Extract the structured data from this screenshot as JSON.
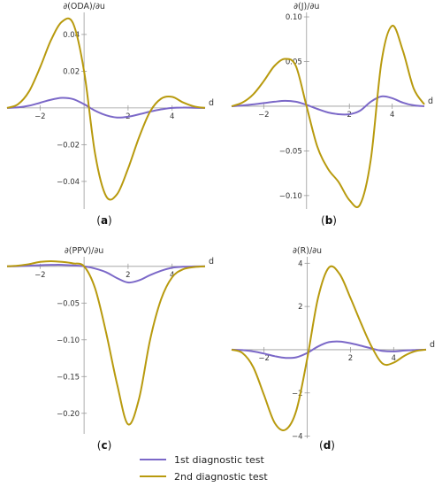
{
  "colors": {
    "first": "#7b68c8",
    "second": "#b89a0e",
    "axis": "#999999"
  },
  "legend": [
    {
      "key": "first",
      "label": "1st diagnostic test"
    },
    {
      "key": "second",
      "label": "2nd diagnostic test"
    }
  ],
  "chart_data": [
    {
      "type": "line",
      "panel_label": "(a)",
      "panel_letter": "a",
      "ylabel": "∂(ODA)/∂u",
      "xlabel": "d",
      "xlim": [
        -3.5,
        5.5
      ],
      "ylim": [
        -0.055,
        0.052
      ],
      "xticks": [
        -2,
        2,
        4
      ],
      "xtick_labels": [
        "−2",
        "2",
        "4"
      ],
      "yticks": [
        0.04,
        0.02,
        -0.02,
        -0.04
      ],
      "ytick_labels": [
        "0.04",
        "0.02",
        "−0.02",
        "−0.04"
      ],
      "series": [
        {
          "name": "1st diagnostic test",
          "key": "first",
          "x": [
            -3.5,
            -3.0,
            -2.5,
            -2.0,
            -1.5,
            -1.0,
            -0.5,
            0.0,
            0.5,
            1.0,
            1.5,
            2.0,
            2.5,
            3.0,
            3.5,
            4.0,
            4.5,
            5.0,
            5.5
          ],
          "y": [
            0.0,
            0.0003,
            0.0012,
            0.0028,
            0.0045,
            0.0055,
            0.0048,
            0.002,
            -0.0015,
            -0.004,
            -0.0052,
            -0.0048,
            -0.0035,
            -0.002,
            -0.0008,
            0.0,
            0.0002,
            0.0001,
            0.0
          ]
        },
        {
          "name": "2nd diagnostic test",
          "key": "second",
          "x": [
            -3.5,
            -3.0,
            -2.5,
            -2.0,
            -1.5,
            -1.0,
            -0.5,
            0.0,
            0.5,
            1.0,
            1.5,
            2.0,
            2.5,
            3.0,
            3.5,
            4.0,
            4.5,
            5.0,
            5.5
          ],
          "y": [
            0.0,
            0.002,
            0.009,
            0.022,
            0.037,
            0.047,
            0.046,
            0.02,
            -0.025,
            -0.048,
            -0.047,
            -0.033,
            -0.016,
            -0.002,
            0.005,
            0.006,
            0.003,
            0.0008,
            0.0
          ]
        }
      ]
    },
    {
      "type": "line",
      "panel_label": "(b)",
      "panel_letter": "b",
      "ylabel": "∂(J)/∂u",
      "xlabel": "d",
      "xlim": [
        -3.5,
        5.5
      ],
      "ylim": [
        -0.115,
        0.105
      ],
      "xticks": [
        -2,
        2,
        4
      ],
      "xtick_labels": [
        "−2",
        "2",
        "4"
      ],
      "yticks": [
        0.1,
        0.05,
        -0.05,
        -0.1
      ],
      "ytick_labels": [
        "0.10",
        "0.05",
        "−0.05",
        "−0.10"
      ],
      "series": [
        {
          "name": "1st diagnostic test",
          "key": "first",
          "x": [
            -3.5,
            -3.0,
            -2.5,
            -2.0,
            -1.5,
            -1.0,
            -0.5,
            0.0,
            0.5,
            1.0,
            1.5,
            2.0,
            2.5,
            3.0,
            3.5,
            4.0,
            4.5,
            5.0,
            5.5
          ],
          "y": [
            0.0,
            0.0008,
            0.002,
            0.0035,
            0.005,
            0.006,
            0.005,
            0.0015,
            -0.003,
            -0.007,
            -0.009,
            -0.009,
            -0.005,
            0.005,
            0.011,
            0.009,
            0.004,
            0.001,
            0.0
          ]
        },
        {
          "name": "2nd diagnostic test",
          "key": "second",
          "x": [
            -3.5,
            -3.0,
            -2.5,
            -2.0,
            -1.5,
            -1.0,
            -0.5,
            0.0,
            0.5,
            1.0,
            1.5,
            2.0,
            2.5,
            3.0,
            3.5,
            4.0,
            4.5,
            5.0,
            5.5
          ],
          "y": [
            0.0,
            0.004,
            0.013,
            0.028,
            0.045,
            0.053,
            0.045,
            0.0,
            -0.045,
            -0.07,
            -0.085,
            -0.105,
            -0.11,
            -0.06,
            0.05,
            0.09,
            0.062,
            0.02,
            0.002
          ]
        }
      ]
    },
    {
      "type": "line",
      "panel_label": "(c)",
      "panel_letter": "c",
      "ylabel": "∂(PPV)/∂u",
      "xlabel": "d",
      "xlim": [
        -3.5,
        5.5
      ],
      "ylim": [
        -0.228,
        0.013
      ],
      "xticks": [
        -2,
        2,
        4
      ],
      "xtick_labels": [
        "−2",
        "2",
        "4"
      ],
      "yticks": [
        -0.05,
        -0.1,
        -0.15,
        -0.2
      ],
      "ytick_labels": [
        "−0.05",
        "−0.10",
        "−0.15",
        "−0.20"
      ],
      "series": [
        {
          "name": "1st diagnostic test",
          "key": "first",
          "x": [
            -3.5,
            -3.0,
            -2.5,
            -2.0,
            -1.5,
            -1.0,
            -0.5,
            0.0,
            0.5,
            1.0,
            1.5,
            2.0,
            2.5,
            3.0,
            3.5,
            4.0,
            4.5,
            5.0,
            5.5
          ],
          "y": [
            0.0,
            0.0002,
            0.0008,
            0.0015,
            0.002,
            0.002,
            0.0012,
            0.0,
            -0.003,
            -0.008,
            -0.016,
            -0.022,
            -0.019,
            -0.012,
            -0.006,
            -0.002,
            -0.0006,
            -0.0001,
            0.0
          ]
        },
        {
          "name": "2nd diagnostic test",
          "key": "second",
          "x": [
            -3.5,
            -3.0,
            -2.5,
            -2.0,
            -1.5,
            -1.0,
            -0.5,
            0.0,
            0.5,
            1.0,
            1.5,
            2.0,
            2.5,
            3.0,
            3.5,
            4.0,
            4.5,
            5.0,
            5.5
          ],
          "y": [
            0.0,
            0.001,
            0.003,
            0.006,
            0.007,
            0.006,
            0.004,
            0.0,
            -0.03,
            -0.09,
            -0.16,
            -0.215,
            -0.18,
            -0.1,
            -0.045,
            -0.015,
            -0.004,
            -0.001,
            0.0
          ]
        }
      ]
    },
    {
      "type": "line",
      "panel_label": "(d)",
      "panel_letter": "d",
      "ylabel": "∂(R)/∂u",
      "xlabel": "d",
      "xlim": [
        -3.5,
        5.5
      ],
      "ylim": [
        -4.1,
        4.3
      ],
      "xticks": [
        -2,
        2,
        4
      ],
      "xtick_labels": [
        "−2",
        "2",
        "4"
      ],
      "yticks": [
        4,
        2,
        -2,
        -4
      ],
      "ytick_labels": [
        "4",
        "2",
        "−2",
        "−4"
      ],
      "series": [
        {
          "name": "1st diagnostic test",
          "key": "first",
          "x": [
            -3.5,
            -3.0,
            -2.5,
            -2.0,
            -1.5,
            -1.0,
            -0.5,
            0.0,
            0.5,
            1.0,
            1.5,
            2.0,
            2.5,
            3.0,
            3.5,
            4.0,
            4.5,
            5.0,
            5.5
          ],
          "y": [
            0.0,
            -0.02,
            -0.08,
            -0.18,
            -0.3,
            -0.38,
            -0.35,
            -0.15,
            0.15,
            0.35,
            0.38,
            0.3,
            0.18,
            0.05,
            -0.06,
            -0.08,
            -0.04,
            -0.01,
            0.0
          ]
        },
        {
          "name": "2nd diagnostic test",
          "key": "second",
          "x": [
            -3.5,
            -3.0,
            -2.5,
            -2.0,
            -1.5,
            -1.0,
            -0.5,
            0.0,
            0.5,
            1.0,
            1.5,
            2.0,
            2.5,
            3.0,
            3.5,
            4.0,
            4.5,
            5.0,
            5.5
          ],
          "y": [
            0.0,
            -0.15,
            -0.8,
            -2.1,
            -3.4,
            -3.7,
            -2.8,
            -0.4,
            2.4,
            3.8,
            3.5,
            2.4,
            1.2,
            0.1,
            -0.65,
            -0.6,
            -0.28,
            -0.07,
            0.0
          ]
        }
      ]
    }
  ]
}
